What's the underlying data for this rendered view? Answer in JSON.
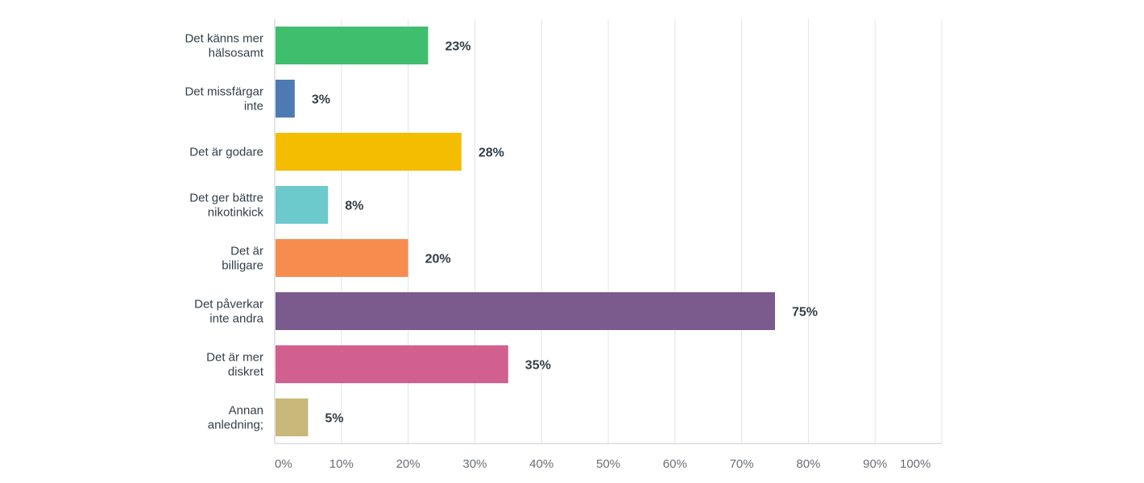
{
  "chart_data": {
    "type": "bar",
    "orientation": "horizontal",
    "categories": [
      [
        "Det känns mer",
        "hälsosamt"
      ],
      [
        "Det missfärgar",
        "inte"
      ],
      [
        "Det är godare"
      ],
      [
        "Det ger bättre",
        "nikotinkick"
      ],
      [
        "Det är",
        "billigare"
      ],
      [
        "Det påverkar",
        "inte andra"
      ],
      [
        "Det är mer",
        "diskret"
      ],
      [
        "Annan",
        "anledning;"
      ]
    ],
    "values": [
      23,
      3,
      28,
      8,
      20,
      75,
      35,
      5
    ],
    "value_labels": [
      "23%",
      "3%",
      "28%",
      "8%",
      "20%",
      "75%",
      "35%",
      "5%"
    ],
    "colors": [
      "#3fbf6e",
      "#4e7ab4",
      "#f5bd00",
      "#6cc9cc",
      "#f78c4f",
      "#7b5b8e",
      "#d2608f",
      "#c8b87a"
    ],
    "xlim": [
      0,
      100
    ],
    "x_ticks": [
      "0%",
      "10%",
      "20%",
      "30%",
      "40%",
      "50%",
      "60%",
      "70%",
      "80%",
      "90%",
      "100%"
    ],
    "grid": "vertical",
    "title": "",
    "xlabel": "",
    "ylabel": ""
  }
}
